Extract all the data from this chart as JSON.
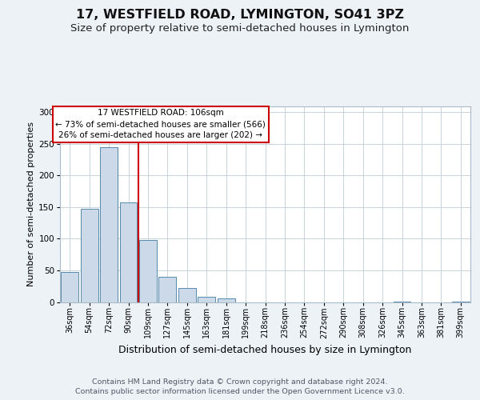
{
  "title1": "17, WESTFIELD ROAD, LYMINGTON, SO41 3PZ",
  "title2": "Size of property relative to semi-detached houses in Lymington",
  "xlabel": "Distribution of semi-detached houses by size in Lymington",
  "ylabel": "Number of semi-detached properties",
  "categories": [
    "36sqm",
    "54sqm",
    "72sqm",
    "90sqm",
    "109sqm",
    "127sqm",
    "145sqm",
    "163sqm",
    "181sqm",
    "199sqm",
    "218sqm",
    "236sqm",
    "254sqm",
    "272sqm",
    "290sqm",
    "308sqm",
    "326sqm",
    "345sqm",
    "363sqm",
    "381sqm",
    "399sqm"
  ],
  "values": [
    47,
    147,
    245,
    157,
    98,
    40,
    22,
    8,
    6,
    0,
    0,
    0,
    0,
    0,
    0,
    0,
    0,
    1,
    0,
    0,
    1
  ],
  "bar_color": "#ccd9e8",
  "bar_edge_color": "#5588aa",
  "vline_index": 4,
  "vline_color": "#cc0000",
  "annotation_line1": "17 WESTFIELD ROAD: 106sqm",
  "annotation_line2": "← 73% of semi-detached houses are smaller (566)",
  "annotation_line3": "26% of semi-detached houses are larger (202) →",
  "annotation_box_facecolor": "#ffffff",
  "annotation_box_edgecolor": "#cc0000",
  "background_color": "#edf2f7",
  "plot_background": "#ffffff",
  "ylim_max": 310,
  "yticks": [
    0,
    50,
    100,
    150,
    200,
    250,
    300
  ],
  "grid_color": "#c8d4dc",
  "footer": "Contains HM Land Registry data © Crown copyright and database right 2024.\nContains public sector information licensed under the Open Government Licence v3.0.",
  "title1_fontsize": 11.5,
  "title2_fontsize": 9.5,
  "xlabel_fontsize": 9,
  "ylabel_fontsize": 8,
  "tick_fontsize": 7,
  "annotation_fontsize": 7.5,
  "footer_fontsize": 6.8
}
